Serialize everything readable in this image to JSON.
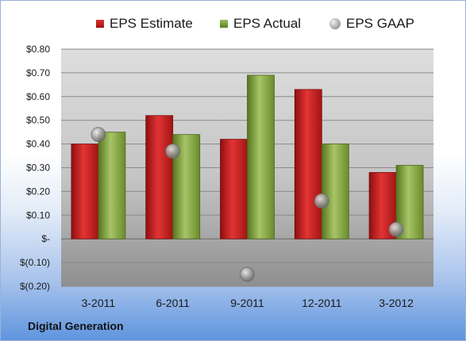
{
  "chart_data": {
    "type": "bar",
    "categories": [
      "3-2011",
      "6-2011",
      "9-2011",
      "12-2011",
      "3-2012"
    ],
    "series": [
      {
        "name": "EPS Estimate",
        "kind": "bar",
        "color": "#c4191b",
        "values": [
          0.4,
          0.52,
          0.42,
          0.63,
          0.28
        ]
      },
      {
        "name": "EPS Actual",
        "kind": "bar",
        "color": "#7a9c38",
        "values": [
          0.45,
          0.44,
          0.69,
          0.4,
          0.31
        ]
      },
      {
        "name": "EPS GAAP",
        "kind": "marker",
        "color": "#a0a0a0",
        "values": [
          0.44,
          0.37,
          -0.15,
          0.16,
          0.04
        ]
      }
    ],
    "yticks": [
      "$0.80",
      "$0.70",
      "$0.60",
      "$0.50",
      "$0.40",
      "$0.30",
      "$0.20",
      "$0.10",
      "$-",
      "$(0.10)",
      "$(0.20)"
    ],
    "ylim": [
      -0.2,
      0.8
    ],
    "grid": true,
    "legend_position": "top"
  },
  "footer": {
    "company": "Digital Generation"
  }
}
